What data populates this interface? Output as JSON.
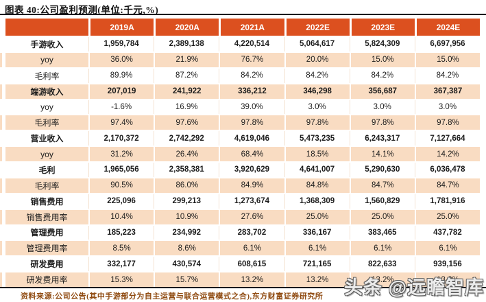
{
  "title": "图表 40:公司盈利预测(单位:千元,%)",
  "table": {
    "columns": [
      "2019A",
      "2020A",
      "2021A",
      "2022E",
      "2023E",
      "2024E"
    ],
    "rows": [
      {
        "label": "手游收入",
        "bold": true,
        "values": [
          "1,959,784",
          "2,389,138",
          "4,220,514",
          "5,064,617",
          "5,824,309",
          "6,697,956"
        ]
      },
      {
        "label": "yoy",
        "bold": false,
        "values": [
          "36.0%",
          "21.9%",
          "76.7%",
          "20.0%",
          "15.0%",
          "15.0%"
        ]
      },
      {
        "label": "毛利率",
        "bold": false,
        "values": [
          "89.9%",
          "87.2%",
          "84.2%",
          "84.2%",
          "84.2%",
          "84.2%"
        ]
      },
      {
        "label": "端游收入",
        "bold": true,
        "values": [
          "207,019",
          "241,922",
          "336,212",
          "346,298",
          "356,687",
          "367,387"
        ]
      },
      {
        "label": "yoy",
        "bold": false,
        "values": [
          "-1.6%",
          "16.9%",
          "39.0%",
          "3.0%",
          "3.0%",
          "3.0%"
        ]
      },
      {
        "label": "毛利率",
        "bold": false,
        "values": [
          "97.4%",
          "97.6%",
          "97.8%",
          "97.8%",
          "97.8%",
          "97.8%"
        ]
      },
      {
        "label": "营业收入",
        "bold": true,
        "values": [
          "2,170,372",
          "2,742,292",
          "4,619,046",
          "5,473,235",
          "6,243,317",
          "7,127,664"
        ]
      },
      {
        "label": "yoy",
        "bold": false,
        "values": [
          "31.2%",
          "26.4%",
          "68.4%",
          "18.5%",
          "14.1%",
          "14.2%"
        ]
      },
      {
        "label": "毛利",
        "bold": true,
        "values": [
          "1,965,056",
          "2,358,381",
          "3,920,629",
          "4,641,007",
          "5,290,630",
          "6,036,478"
        ]
      },
      {
        "label": "毛利率",
        "bold": false,
        "values": [
          "90.5%",
          "86.0%",
          "84.9%",
          "84.8%",
          "84.7%",
          "84.7%"
        ]
      },
      {
        "label": "销售费用",
        "bold": true,
        "values": [
          "225,096",
          "299,213",
          "1,273,674",
          "1,368,309",
          "1,560,829",
          "1,781,916"
        ]
      },
      {
        "label": "销售费用率",
        "bold": false,
        "values": [
          "10.4%",
          "10.9%",
          "27.6%",
          "25.0%",
          "25.0%",
          "25.0%"
        ]
      },
      {
        "label": "管理费用",
        "bold": true,
        "values": [
          "185,223",
          "234,992",
          "283,702",
          "336,167",
          "383,465",
          "437,782"
        ]
      },
      {
        "label": "管理费用率",
        "bold": false,
        "values": [
          "8.5%",
          "8.6%",
          "6.1%",
          "6.1%",
          "6.1%",
          "6.1%"
        ]
      },
      {
        "label": "研发费用",
        "bold": true,
        "values": [
          "332,177",
          "430,574",
          "608,615",
          "721,165",
          "822,633",
          "939,156"
        ]
      },
      {
        "label": "研发费用率",
        "bold": false,
        "values": [
          "15.3%",
          "15.7%",
          "13.2%",
          "13.2%",
          "13.2%",
          "13.2%"
        ]
      }
    ]
  },
  "footer": "资料来源:公司公告(其中手游部分为自主运营与联合运营模式之合),东方财富证券研究所",
  "watermark": "头条 @远瞻智库",
  "colors": {
    "header_bg": "#DC501F",
    "alt_row_bg": "#F9DCC2",
    "rule": "#17171D",
    "footer_text": "#8F4A10",
    "body_text": "#1C1C1C"
  }
}
